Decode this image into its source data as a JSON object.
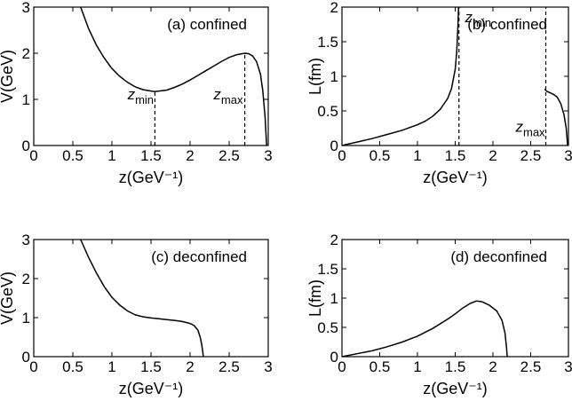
{
  "chart_data": [
    {
      "id": "a",
      "type": "line",
      "panel_label": "(a) confined",
      "xlabel": "z(GeV⁻¹)",
      "ylabel": "V(GeV)",
      "xlim": [
        0,
        3
      ],
      "ylim": [
        0,
        3
      ],
      "xticks": [
        "0",
        "0.5",
        "1",
        "1.5",
        "2",
        "2.5",
        "3"
      ],
      "yticks": [
        "0",
        "1",
        "2",
        "3"
      ],
      "series": [
        {
          "segments": [
            [
              [
                0.6,
                3.0
              ],
              [
                0.7,
                2.54
              ],
              [
                0.8,
                2.18
              ],
              [
                0.9,
                1.9
              ],
              [
                1.0,
                1.67
              ],
              [
                1.1,
                1.5
              ],
              [
                1.2,
                1.37
              ],
              [
                1.3,
                1.27
              ],
              [
                1.4,
                1.21
              ],
              [
                1.5,
                1.18
              ],
              [
                1.55,
                1.17
              ],
              [
                1.6,
                1.18
              ],
              [
                1.7,
                1.2
              ],
              [
                1.8,
                1.26
              ],
              [
                1.9,
                1.33
              ],
              [
                2.0,
                1.42
              ],
              [
                2.1,
                1.52
              ],
              [
                2.2,
                1.62
              ],
              [
                2.3,
                1.72
              ],
              [
                2.4,
                1.82
              ],
              [
                2.5,
                1.91
              ],
              [
                2.6,
                1.97
              ],
              [
                2.7,
                2.0
              ],
              [
                2.75,
                1.99
              ],
              [
                2.8,
                1.94
              ],
              [
                2.85,
                1.82
              ],
              [
                2.9,
                1.55
              ],
              [
                2.93,
                1.2
              ],
              [
                2.96,
                0.6
              ],
              [
                2.98,
                0.0
              ]
            ]
          ]
        }
      ],
      "markers": [
        {
          "x": 1.55,
          "y_top": 1.17,
          "label": "z",
          "sub": "min",
          "label_x": 1.2,
          "label_y": 1.0
        },
        {
          "x": 2.7,
          "y_top": 2.0,
          "label": "z",
          "sub": "max",
          "label_x": 2.3,
          "label_y": 1.0
        }
      ]
    },
    {
      "id": "b",
      "type": "line",
      "panel_label": "(b) confined",
      "xlabel": "z(GeV⁻¹)",
      "ylabel": "L(fm)",
      "xlim": [
        0,
        3
      ],
      "ylim": [
        0,
        2
      ],
      "xticks": [
        "0",
        "0.5",
        "1",
        "1.5",
        "2",
        "2.5",
        "3"
      ],
      "yticks": [
        "0",
        "0.5",
        "1",
        "1.5",
        "2"
      ],
      "series": [
        {
          "segments": [
            [
              [
                0.0,
                0.0
              ],
              [
                0.2,
                0.05
              ],
              [
                0.4,
                0.1
              ],
              [
                0.6,
                0.16
              ],
              [
                0.8,
                0.22
              ],
              [
                1.0,
                0.3
              ],
              [
                1.1,
                0.35
              ],
              [
                1.2,
                0.42
              ],
              [
                1.3,
                0.52
              ],
              [
                1.4,
                0.68
              ],
              [
                1.45,
                0.82
              ],
              [
                1.5,
                1.1
              ],
              [
                1.52,
                1.35
              ],
              [
                1.535,
                1.7
              ],
              [
                1.545,
                2.0
              ]
            ],
            [
              [
                2.69,
                0.82
              ],
              [
                2.695,
                0.8
              ],
              [
                2.72,
                0.78
              ],
              [
                2.76,
                0.76
              ],
              [
                2.8,
                0.74
              ],
              [
                2.85,
                0.7
              ],
              [
                2.9,
                0.6
              ],
              [
                2.94,
                0.45
              ],
              [
                2.97,
                0.25
              ],
              [
                2.99,
                0.0
              ]
            ]
          ]
        }
      ],
      "markers": [
        {
          "x": 1.55,
          "y_top": 2.0,
          "label": "z",
          "sub": "min",
          "label_x": 1.63,
          "label_y": 1.78
        },
        {
          "x": 2.7,
          "y_top": 2.0,
          "label": "z",
          "sub": "max",
          "label_x": 2.3,
          "label_y": 0.2
        }
      ]
    },
    {
      "id": "c",
      "type": "line",
      "panel_label": "(c) deconfined",
      "xlabel": "z(GeV⁻¹)",
      "ylabel": "V(GeV)",
      "xlim": [
        0,
        3
      ],
      "ylim": [
        0,
        3
      ],
      "xticks": [
        "0",
        "0.5",
        "1",
        "1.5",
        "2",
        "2.5",
        "3"
      ],
      "yticks": [
        "0",
        "1",
        "2",
        "3"
      ],
      "series": [
        {
          "segments": [
            [
              [
                0.6,
                3.0
              ],
              [
                0.7,
                2.55
              ],
              [
                0.8,
                2.15
              ],
              [
                0.9,
                1.8
              ],
              [
                1.0,
                1.52
              ],
              [
                1.1,
                1.32
              ],
              [
                1.2,
                1.17
              ],
              [
                1.3,
                1.07
              ],
              [
                1.4,
                1.02
              ],
              [
                1.5,
                0.99
              ],
              [
                1.6,
                0.97
              ],
              [
                1.7,
                0.95
              ],
              [
                1.8,
                0.93
              ],
              [
                1.9,
                0.9
              ],
              [
                2.0,
                0.85
              ],
              [
                2.05,
                0.8
              ],
              [
                2.1,
                0.68
              ],
              [
                2.13,
                0.5
              ],
              [
                2.15,
                0.3
              ],
              [
                2.17,
                0.0
              ]
            ]
          ]
        }
      ],
      "markers": []
    },
    {
      "id": "d",
      "type": "line",
      "panel_label": "(d) deconfined",
      "xlabel": "z(GeV⁻¹)",
      "ylabel": "L(fm)",
      "xlim": [
        0,
        3
      ],
      "ylim": [
        0,
        2
      ],
      "xticks": [
        "0",
        "0.5",
        "1",
        "1.5",
        "2",
        "2.5",
        "3"
      ],
      "yticks": [
        "0",
        "0.5",
        "1",
        "1.5",
        "2"
      ],
      "series": [
        {
          "segments": [
            [
              [
                0.0,
                0.0
              ],
              [
                0.2,
                0.05
              ],
              [
                0.4,
                0.1
              ],
              [
                0.6,
                0.17
              ],
              [
                0.8,
                0.25
              ],
              [
                1.0,
                0.35
              ],
              [
                1.2,
                0.48
              ],
              [
                1.4,
                0.64
              ],
              [
                1.5,
                0.73
              ],
              [
                1.6,
                0.83
              ],
              [
                1.7,
                0.91
              ],
              [
                1.78,
                0.95
              ],
              [
                1.85,
                0.94
              ],
              [
                1.95,
                0.88
              ],
              [
                2.05,
                0.78
              ],
              [
                2.12,
                0.62
              ],
              [
                2.16,
                0.4
              ],
              [
                2.18,
                0.15
              ],
              [
                2.19,
                0.0
              ]
            ]
          ]
        }
      ],
      "markers": []
    }
  ]
}
